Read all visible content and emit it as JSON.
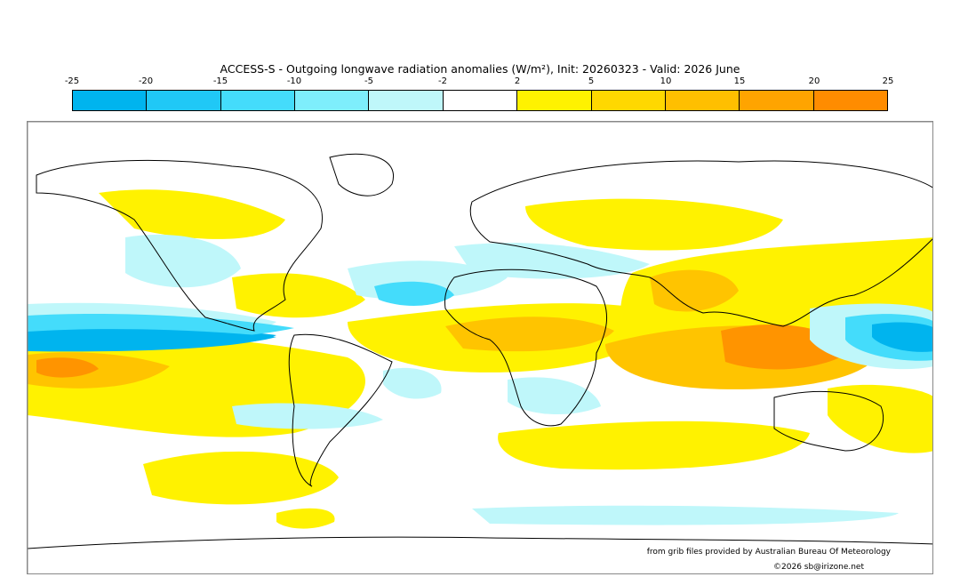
{
  "header": {
    "title": "ACCESS-S - Outgoing longwave radiation anomalies (W/m²), Init: 20260323 - Valid: 2026 June"
  },
  "colorbar": {
    "ticks": [
      "-25",
      "-20",
      "-15",
      "-10",
      "-5",
      "-2",
      "2",
      "5",
      "10",
      "15",
      "20",
      "25"
    ],
    "colors": [
      "#00b4ee",
      "#20c8f6",
      "#44dcfb",
      "#7eeefc",
      "#bff7fa",
      "#ffffff",
      "#fff200",
      "#ffd800",
      "#ffbf00",
      "#ffa400",
      "#ff8c00"
    ]
  },
  "legend_colors": {
    "strong_negative": "#00b4ee",
    "negative": "#44dcfb",
    "weak_negative": "#bff7fa",
    "neutral": "#ffffff",
    "weak_positive": "#fff200",
    "positive": "#ffc400",
    "strong_positive": "#ff9400"
  },
  "footer": {
    "source": "from grib files provided by Australian Bureau Of Meteorology",
    "copyright": "©2026 sb@irizone.net"
  }
}
